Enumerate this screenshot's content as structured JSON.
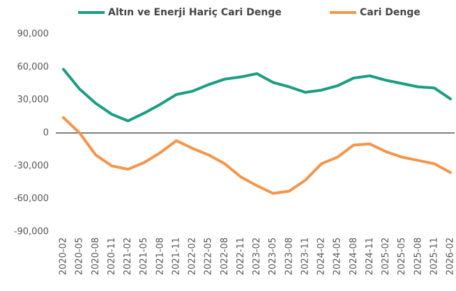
{
  "chart_data": {
    "type": "line",
    "categories": [
      "2020-02",
      "2020-05",
      "2020-08",
      "2020-11",
      "2021-02",
      "2021-05",
      "2021-08",
      "2021-11",
      "2022-02",
      "2022-05",
      "2022-08",
      "2022-11",
      "2023-02",
      "2023-05",
      "2023-08",
      "2023-11",
      "2024-02",
      "2024-05",
      "2024-08",
      "2024-11",
      "2025-02",
      "2025-05",
      "2025-08",
      "2025-11",
      "2026-02"
    ],
    "series": [
      {
        "name": "Altın ve Enerji Hariç Cari Denge",
        "color": "#1a9e82",
        "values": [
          58000,
          40000,
          27000,
          17000,
          11000,
          18000,
          26000,
          35000,
          38000,
          44000,
          49000,
          51000,
          54000,
          46000,
          42000,
          37000,
          39000,
          43000,
          50000,
          52000,
          48000,
          45000,
          42000,
          41000,
          31000
        ]
      },
      {
        "name": "Cari Denge",
        "color": "#f5954a",
        "values": [
          14000,
          0,
          -20000,
          -30000,
          -33000,
          -27000,
          -18000,
          -7000,
          -14000,
          -20000,
          -28000,
          -40000,
          -48000,
          -55000,
          -53000,
          -43000,
          -28000,
          -22000,
          -11000,
          -10000,
          -17000,
          -22000,
          -25000,
          -28000,
          -36000
        ]
      }
    ],
    "ylim": [
      -90000,
      90000
    ],
    "yticks": [
      {
        "value": -90000,
        "label": "-90,000"
      },
      {
        "value": -60000,
        "label": "-60,000"
      },
      {
        "value": -30000,
        "label": "-30,000"
      },
      0,
      {
        "value": 30000,
        "label": "30,000"
      },
      {
        "value": 60000,
        "label": "60,000"
      },
      {
        "value": 90000,
        "label": "90,000"
      }
    ],
    "grid": false
  }
}
